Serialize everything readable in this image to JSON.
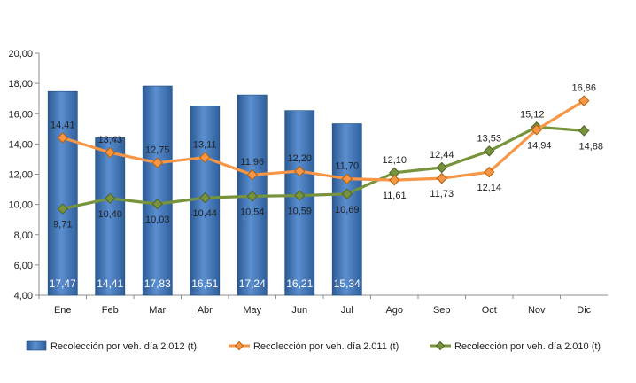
{
  "chart_data": {
    "type": "bar+line",
    "categories": [
      "Ene",
      "Feb",
      "Mar",
      "Abr",
      "May",
      "Jun",
      "Jul",
      "Ago",
      "Sep",
      "Oct",
      "Nov",
      "Dic"
    ],
    "ylim": [
      4,
      20
    ],
    "yticks": [
      "4,00",
      "6,00",
      "8,00",
      "10,00",
      "12,00",
      "14,00",
      "16,00",
      "18,00",
      "20,00"
    ],
    "legend_position": "bottom",
    "grid": false,
    "series": [
      {
        "name": "Recolección por veh. día 2.012 (t)",
        "type": "bar",
        "color": "#4f81bd",
        "values": [
          17.47,
          14.41,
          17.83,
          16.51,
          17.24,
          16.21,
          15.34,
          null,
          null,
          null,
          null,
          null
        ],
        "labels": [
          "17,47",
          "14,41",
          "17,83",
          "16,51",
          "17,24",
          "16,21",
          "15,34",
          null,
          null,
          null,
          null,
          null
        ]
      },
      {
        "name": "Recolección por veh. día 2.011 (t)",
        "type": "line",
        "color": "#f79646",
        "marker": "diamond",
        "values": [
          14.41,
          13.43,
          12.75,
          13.11,
          11.96,
          12.2,
          11.7,
          11.61,
          11.73,
          12.14,
          14.94,
          16.86
        ],
        "labels": [
          "14,41",
          "13,43",
          "12,75",
          "13,11",
          "11,96",
          "12,20",
          "11,70",
          "11,61",
          "11,73",
          "12,14",
          "14,94",
          "16,86"
        ]
      },
      {
        "name": "Recolección por veh. día 2.010 (t)",
        "type": "line",
        "color": "#77933c",
        "marker": "diamond",
        "values": [
          9.71,
          10.4,
          10.03,
          10.44,
          10.54,
          10.59,
          10.69,
          12.1,
          12.44,
          13.53,
          15.12,
          14.88
        ],
        "labels": [
          "9,71",
          "10,40",
          "10,03",
          "10,44",
          "10,54",
          "10,59",
          "10,69",
          "12,10",
          "12,44",
          "13,53",
          "15,12",
          "14,88"
        ]
      }
    ]
  }
}
